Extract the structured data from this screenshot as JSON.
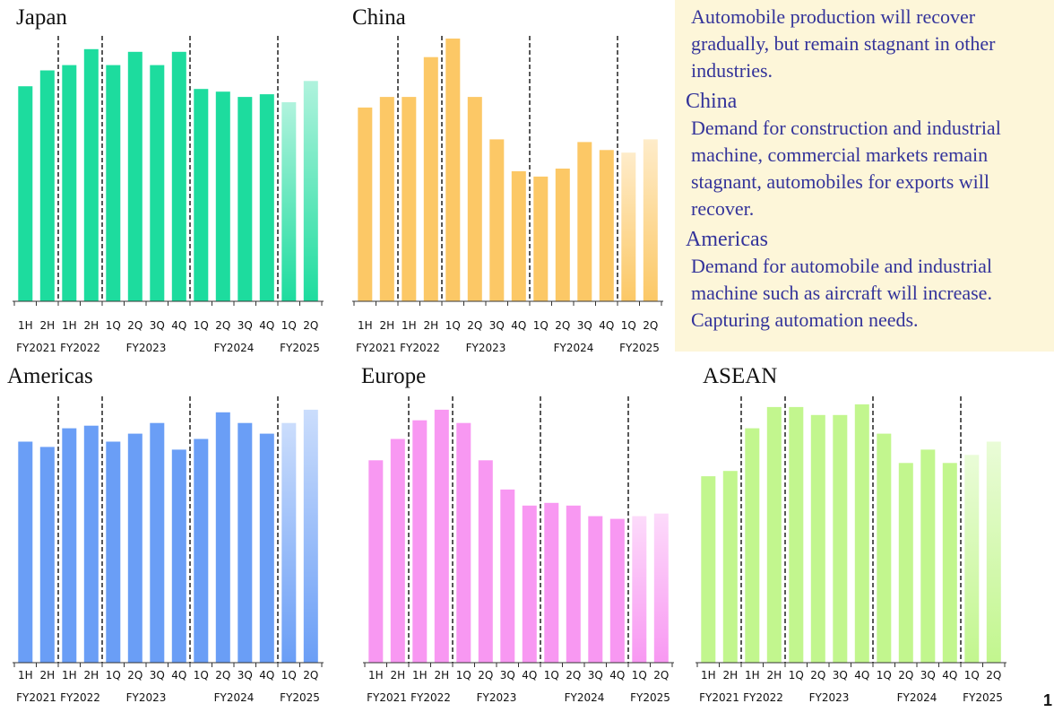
{
  "panel": {
    "japan_body": "Automobile production will recover gradually, but remain stagnant in other industries.",
    "china_heading": "China",
    "china_body": "Demand for construction and industrial machine, commercial markets remain stagnant, automobiles for exports will recover.",
    "americas_heading": "Americas",
    "americas_body": "Demand for automobile and  industrial machine such as aircraft will increase. Capturing automation needs."
  },
  "page_number": "1",
  "colors": {
    "japan": "#1ddc9e",
    "china": "#fcc866",
    "americas": "#6a9ef6",
    "europe": "#f898f2",
    "asean": "#c2f68e",
    "panel_bg": "#fdf6d9",
    "panel_text": "#33339a"
  },
  "chart_data": [
    {
      "type": "bar",
      "title": "Japan",
      "categories": [
        "1H",
        "2H",
        "1H",
        "2H",
        "1Q",
        "2Q",
        "3Q",
        "4Q",
        "1Q",
        "2Q",
        "3Q",
        "4Q",
        "1Q",
        "2Q"
      ],
      "groups": [
        {
          "label": "FY2021",
          "count": 2
        },
        {
          "label": "FY2022",
          "count": 2
        },
        {
          "label": "FY2023",
          "count": 4
        },
        {
          "label": "FY2024",
          "count": 4
        },
        {
          "label": "FY2025",
          "count": 2
        }
      ],
      "values": [
        81,
        87,
        89,
        95,
        89,
        94,
        89,
        94,
        80,
        79,
        77,
        78,
        75,
        83
      ],
      "forecast_from": 12,
      "ylim": [
        0,
        100
      ],
      "color": "#1ddc9e"
    },
    {
      "type": "bar",
      "title": "China",
      "categories": [
        "1H",
        "2H",
        "1H",
        "2H",
        "1Q",
        "2Q",
        "3Q",
        "4Q",
        "1Q",
        "2Q",
        "3Q",
        "4Q",
        "1Q",
        "2Q"
      ],
      "groups": [
        {
          "label": "FY2021",
          "count": 2
        },
        {
          "label": "FY2022",
          "count": 2
        },
        {
          "label": "FY2023",
          "count": 4
        },
        {
          "label": "FY2024",
          "count": 4
        },
        {
          "label": "FY2025",
          "count": 2
        }
      ],
      "values": [
        73,
        77,
        77,
        92,
        99,
        77,
        61,
        49,
        47,
        50,
        60,
        57,
        56,
        61
      ],
      "forecast_from": 12,
      "ylim": [
        0,
        100
      ],
      "color": "#fcc866"
    },
    {
      "type": "bar",
      "title": "Americas",
      "categories": [
        "1H",
        "2H",
        "1H",
        "2H",
        "1Q",
        "2Q",
        "3Q",
        "4Q",
        "1Q",
        "2Q",
        "3Q",
        "4Q",
        "1Q",
        "2Q"
      ],
      "groups": [
        {
          "label": "FY2021",
          "count": 2
        },
        {
          "label": "FY2022",
          "count": 2
        },
        {
          "label": "FY2023",
          "count": 4
        },
        {
          "label": "FY2024",
          "count": 4
        },
        {
          "label": "FY2025",
          "count": 2
        }
      ],
      "values": [
        83,
        81,
        88,
        89,
        83,
        86,
        90,
        80,
        84,
        94,
        90,
        86,
        90,
        95
      ],
      "forecast_from": 12,
      "ylim": [
        0,
        100
      ],
      "color": "#6a9ef6"
    },
    {
      "type": "bar",
      "title": "Europe",
      "categories": [
        "1H",
        "2H",
        "1H",
        "2H",
        "1Q",
        "2Q",
        "3Q",
        "4Q",
        "1Q",
        "2Q",
        "3Q",
        "4Q",
        "1Q",
        "2Q"
      ],
      "groups": [
        {
          "label": "FY2021",
          "count": 2
        },
        {
          "label": "FY2022",
          "count": 2
        },
        {
          "label": "FY2023",
          "count": 4
        },
        {
          "label": "FY2024",
          "count": 4
        },
        {
          "label": "FY2025",
          "count": 2
        }
      ],
      "values": [
        76,
        84,
        91,
        95,
        90,
        76,
        65,
        59,
        60,
        59,
        55,
        54,
        55,
        56
      ],
      "forecast_from": 12,
      "ylim": [
        0,
        100
      ],
      "color": "#f898f2"
    },
    {
      "type": "bar",
      "title": "ASEAN",
      "categories": [
        "1H",
        "2H",
        "1H",
        "2H",
        "1Q",
        "2Q",
        "3Q",
        "4Q",
        "1Q",
        "2Q",
        "3Q",
        "4Q",
        "1Q",
        "2Q"
      ],
      "groups": [
        {
          "label": "FY2021",
          "count": 2
        },
        {
          "label": "FY2022",
          "count": 2
        },
        {
          "label": "FY2023",
          "count": 4
        },
        {
          "label": "FY2024",
          "count": 4
        },
        {
          "label": "FY2025",
          "count": 2
        }
      ],
      "values": [
        70,
        72,
        88,
        96,
        96,
        93,
        93,
        97,
        86,
        75,
        80,
        75,
        78,
        83
      ],
      "forecast_from": 12,
      "ylim": [
        0,
        100
      ],
      "color": "#c2f68e"
    }
  ]
}
